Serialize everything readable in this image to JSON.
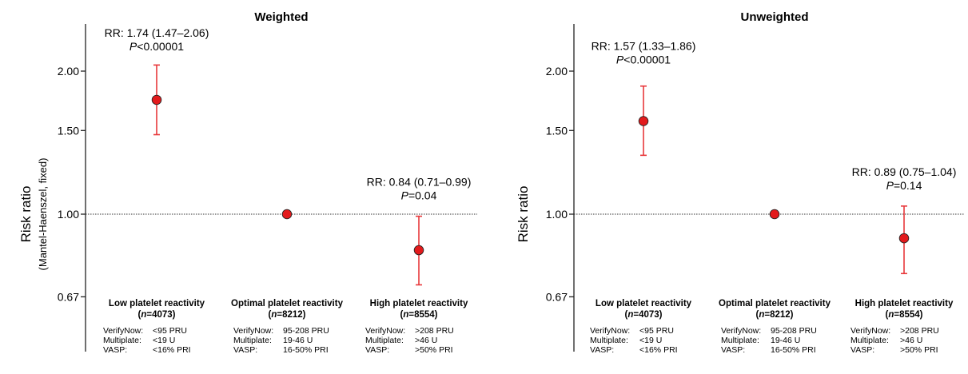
{
  "chart_data": [
    {
      "type": "scatter",
      "title": "Weighted",
      "ylabel": "Risk ratio",
      "ylabel_sub": "(Mantel-Haenszel, fixed)",
      "y_scale": "log",
      "ylim": [
        0.62,
        2.6
      ],
      "yticks": [
        "0.67",
        "1.00",
        "1.50",
        "2.00"
      ],
      "reference_line": 1.0,
      "points": [
        {
          "group": "Low platelet reactivity",
          "n": "4073",
          "rr": 1.74,
          "lo": 1.47,
          "hi": 2.06,
          "rr_text": "RR: 1.74 (1.47–2.06)",
          "p_text": "<0.00001",
          "criteria": [
            [
              "VerifyNow:",
              "<95  PRU"
            ],
            [
              "Multiplate:",
              "<19 U"
            ],
            [
              "VASP:",
              "<16% PRI"
            ]
          ]
        },
        {
          "group": "Optimal platelet reactivity",
          "n": "8212",
          "rr": 1.0,
          "criteria": [
            [
              "VerifyNow:",
              "95-208  PRU"
            ],
            [
              "Multiplate:",
              "19-46 U"
            ],
            [
              "VASP:",
              "16-50% PRI"
            ]
          ]
        },
        {
          "group": "High platelet reactivity",
          "n": "8554",
          "rr": 0.84,
          "lo": 0.71,
          "hi": 0.99,
          "rr_text": "RR: 0.84 (0.71–0.99)",
          "p_text": "=0.04",
          "criteria": [
            [
              "VerifyNow:",
              ">208  PRU"
            ],
            [
              "Multiplate:",
              ">46 U"
            ],
            [
              "VASP:",
              ">50% PRI"
            ]
          ]
        }
      ]
    },
    {
      "type": "scatter",
      "title": "Unweighted",
      "ylabel": "Risk ratio",
      "y_scale": "log",
      "ylim": [
        0.62,
        2.6
      ],
      "yticks": [
        "0.67",
        "1.00",
        "1.50",
        "2.00"
      ],
      "reference_line": 1.0,
      "points": [
        {
          "group": "Low platelet reactivity",
          "n": "4073",
          "rr": 1.57,
          "lo": 1.33,
          "hi": 1.86,
          "rr_text": "RR: 1.57 (1.33–1.86)",
          "p_text": "<0.00001",
          "criteria": [
            [
              "VerifyNow:",
              "<95  PRU"
            ],
            [
              "Multiplate:",
              "<19 U"
            ],
            [
              "VASP:",
              "<16% PRI"
            ]
          ]
        },
        {
          "group": "Optimal platelet reactivity",
          "n": "8212",
          "rr": 1.0,
          "criteria": [
            [
              "VerifyNow:",
              "95-208  PRU"
            ],
            [
              "Multiplate:",
              "19-46 U"
            ],
            [
              "VASP:",
              "16-50% PRI"
            ]
          ]
        },
        {
          "group": "High platelet reactivity",
          "n": "8554",
          "rr": 0.89,
          "lo": 0.75,
          "hi": 1.04,
          "rr_text": "RR: 0.89 (0.75–1.04)",
          "p_text": "=0.14",
          "criteria": [
            [
              "VerifyNow:",
              ">208  PRU"
            ],
            [
              "Multiplate:",
              ">46 U"
            ],
            [
              "VASP:",
              ">50% PRI"
            ]
          ]
        }
      ]
    }
  ],
  "colors": {
    "marker_fill": "#e31a1c",
    "error_bar": "#e8383b",
    "axis": "#222222",
    "reference_line": "#333333"
  }
}
